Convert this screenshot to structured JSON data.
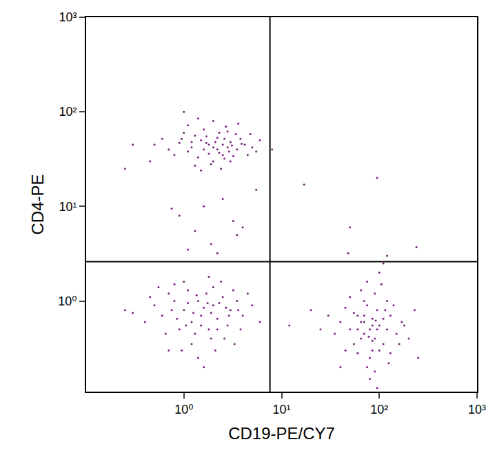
{
  "chart_data": {
    "type": "scatter",
    "x_label": "CD19-PE/CY7",
    "y_label": "CD4-PE",
    "log": true,
    "grid": false,
    "color": "#74207a",
    "marker": "circle",
    "xlim": [
      0.1,
      1000
    ],
    "ylim": [
      0.11,
      1000
    ],
    "xticks": [
      {
        "value": 1,
        "label": "10⁰"
      },
      {
        "value": 10,
        "label": "10¹"
      },
      {
        "value": 100,
        "label": "10²"
      },
      {
        "value": 1000,
        "label": "10³"
      }
    ],
    "yticks": [
      {
        "value": 1,
        "label": "10⁰"
      },
      {
        "value": 10,
        "label": "10¹"
      },
      {
        "value": 100,
        "label": "10²"
      },
      {
        "value": 1000,
        "label": "10³"
      }
    ],
    "quadrant": {
      "x": 7.6,
      "y": 2.6
    },
    "points": [
      [
        1.8,
        45
      ],
      [
        2.2,
        40
      ],
      [
        1.5,
        50
      ],
      [
        2.5,
        35
      ],
      [
        1.2,
        42
      ],
      [
        3.0,
        48
      ],
      [
        2.0,
        30
      ],
      [
        1.7,
        55
      ],
      [
        2.8,
        42
      ],
      [
        1.1,
        38
      ],
      [
        0.9,
        47
      ],
      [
        3.5,
        40
      ],
      [
        2.3,
        60
      ],
      [
        1.4,
        33
      ],
      [
        2.6,
        52
      ],
      [
        1.9,
        28
      ],
      [
        4.2,
        45
      ],
      [
        0.7,
        40
      ],
      [
        1.6,
        65
      ],
      [
        3.2,
        34
      ],
      [
        2.1,
        48
      ],
      [
        1.3,
        56
      ],
      [
        2.9,
        38
      ],
      [
        0.5,
        45
      ],
      [
        5.0,
        42
      ],
      [
        2.4,
        25
      ],
      [
        1.0,
        60
      ],
      [
        3.8,
        52
      ],
      [
        1.8,
        36
      ],
      [
        2.7,
        70
      ],
      [
        0.6,
        52
      ],
      [
        1.5,
        24
      ],
      [
        3.4,
        58
      ],
      [
        2.0,
        42
      ],
      [
        4.5,
        35
      ],
      [
        1.2,
        48
      ],
      [
        2.2,
        53
      ],
      [
        0.8,
        35
      ],
      [
        3.0,
        30
      ],
      [
        1.6,
        40
      ],
      [
        2.5,
        45
      ],
      [
        6.0,
        50
      ],
      [
        0.3,
        45
      ],
      [
        0.25,
        25
      ],
      [
        1.0,
        100
      ],
      [
        2.0,
        80
      ],
      [
        3.6,
        75
      ],
      [
        1.4,
        85
      ],
      [
        5.5,
        38
      ],
      [
        0.45,
        30
      ],
      [
        2.8,
        62
      ],
      [
        1.1,
        72
      ],
      [
        3.9,
        46
      ],
      [
        2.3,
        37
      ],
      [
        1.7,
        47
      ],
      [
        0.95,
        52
      ],
      [
        4.8,
        58
      ],
      [
        2.6,
        32
      ],
      [
        1.3,
        27
      ],
      [
        3.1,
        44
      ],
      [
        0.9,
        8
      ],
      [
        1.3,
        5.5
      ],
      [
        1.6,
        10
      ],
      [
        2.5,
        12
      ],
      [
        3.2,
        7
      ],
      [
        1.9,
        4
      ],
      [
        4.0,
        6
      ],
      [
        2.2,
        3.2
      ],
      [
        5.5,
        15
      ],
      [
        1.1,
        3.5
      ],
      [
        3.5,
        5
      ],
      [
        0.75,
        9.5
      ],
      [
        1.0,
        0.8
      ],
      [
        1.5,
        0.7
      ],
      [
        0.8,
        1.0
      ],
      [
        2.0,
        0.9
      ],
      [
        1.2,
        0.6
      ],
      [
        2.5,
        1.1
      ],
      [
        0.6,
        0.7
      ],
      [
        1.8,
        0.5
      ],
      [
        3.0,
        0.8
      ],
      [
        1.1,
        1.3
      ],
      [
        0.9,
        0.5
      ],
      [
        2.2,
        0.65
      ],
      [
        1.4,
        1.0
      ],
      [
        0.7,
        1.2
      ],
      [
        3.5,
        1.0
      ],
      [
        1.6,
        0.85
      ],
      [
        2.8,
        0.55
      ],
      [
        0.5,
        0.9
      ],
      [
        1.3,
        0.45
      ],
      [
        2.0,
        1.4
      ],
      [
        4.0,
        0.7
      ],
      [
        0.4,
        0.6
      ],
      [
        1.9,
        0.75
      ],
      [
        1.0,
        1.6
      ],
      [
        2.6,
        0.4
      ],
      [
        0.75,
        0.8
      ],
      [
        1.7,
        1.2
      ],
      [
        3.2,
        1.3
      ],
      [
        1.2,
        0.35
      ],
      [
        2.3,
        0.95
      ],
      [
        0.55,
        1.4
      ],
      [
        1.5,
        0.55
      ],
      [
        5.0,
        0.9
      ],
      [
        0.85,
        0.65
      ],
      [
        2.9,
        0.7
      ],
      [
        1.1,
        0.95
      ],
      [
        3.8,
        0.5
      ],
      [
        0.65,
        0.45
      ],
      [
        2.1,
        0.3
      ],
      [
        1.4,
        0.25
      ],
      [
        0.3,
        0.75
      ],
      [
        1.8,
        1.8
      ],
      [
        4.5,
        1.2
      ],
      [
        0.95,
        0.3
      ],
      [
        2.4,
        1.6
      ],
      [
        1.6,
        0.2
      ],
      [
        0.45,
        1.1
      ],
      [
        3.3,
        0.35
      ],
      [
        1.25,
        0.75
      ],
      [
        2.7,
        0.85
      ],
      [
        0.25,
        0.8
      ],
      [
        1.05,
        0.55
      ],
      [
        1.75,
        0.95
      ],
      [
        6.0,
        0.6
      ],
      [
        0.7,
        0.3
      ],
      [
        2.2,
        0.5
      ],
      [
        1.35,
        1.15
      ],
      [
        3.6,
        0.8
      ],
      [
        0.8,
        1.5
      ],
      [
        1.9,
        0.4
      ],
      [
        80,
        0.5
      ],
      [
        70,
        0.6
      ],
      [
        90,
        0.4
      ],
      [
        60,
        0.7
      ],
      [
        100,
        0.55
      ],
      [
        75,
        0.9
      ],
      [
        85,
        0.3
      ],
      [
        120,
        0.5
      ],
      [
        50,
        0.5
      ],
      [
        65,
        0.4
      ],
      [
        95,
        0.8
      ],
      [
        110,
        0.65
      ],
      [
        70,
        1.0
      ],
      [
        55,
        0.35
      ],
      [
        130,
        0.7
      ],
      [
        80,
        0.25
      ],
      [
        40,
        0.6
      ],
      [
        150,
        0.45
      ],
      [
        90,
        1.2
      ],
      [
        60,
        0.5
      ],
      [
        75,
        0.2
      ],
      [
        100,
        0.3
      ],
      [
        45,
        0.85
      ],
      [
        120,
        1.0
      ],
      [
        85,
        0.65
      ],
      [
        35,
        0.45
      ],
      [
        170,
        0.6
      ],
      [
        65,
        1.3
      ],
      [
        95,
        0.5
      ],
      [
        80,
        0.15
      ],
      [
        110,
        0.35
      ],
      [
        55,
        0.75
      ],
      [
        140,
        0.9
      ],
      [
        30,
        0.7
      ],
      [
        200,
        0.4
      ],
      [
        70,
        0.45
      ],
      [
        90,
        0.18
      ],
      [
        105,
        1.5
      ],
      [
        60,
        0.28
      ],
      [
        125,
        0.22
      ],
      [
        75,
        1.6
      ],
      [
        85,
        0.55
      ],
      [
        45,
        0.3
      ],
      [
        160,
        0.35
      ],
      [
        25,
        0.5
      ],
      [
        95,
        0.12
      ],
      [
        115,
        0.8
      ],
      [
        50,
        1.1
      ],
      [
        230,
        0.8
      ],
      [
        70,
        0.7
      ],
      [
        100,
        2.0
      ],
      [
        130,
        0.28
      ],
      [
        40,
        0.2
      ],
      [
        85,
        0.38
      ],
      [
        65,
        0.6
      ],
      [
        180,
        0.55
      ],
      [
        20,
        0.8
      ],
      [
        110,
        2.5
      ],
      [
        78,
        0.42
      ],
      [
        92,
        0.62
      ],
      [
        12,
        0.55
      ],
      [
        250,
        0.25
      ],
      [
        8,
        40
      ],
      [
        17,
        17
      ],
      [
        50,
        6
      ],
      [
        95,
        20
      ],
      [
        240,
        3.7
      ],
      [
        48,
        3.2
      ],
      [
        120,
        3.0
      ]
    ]
  }
}
